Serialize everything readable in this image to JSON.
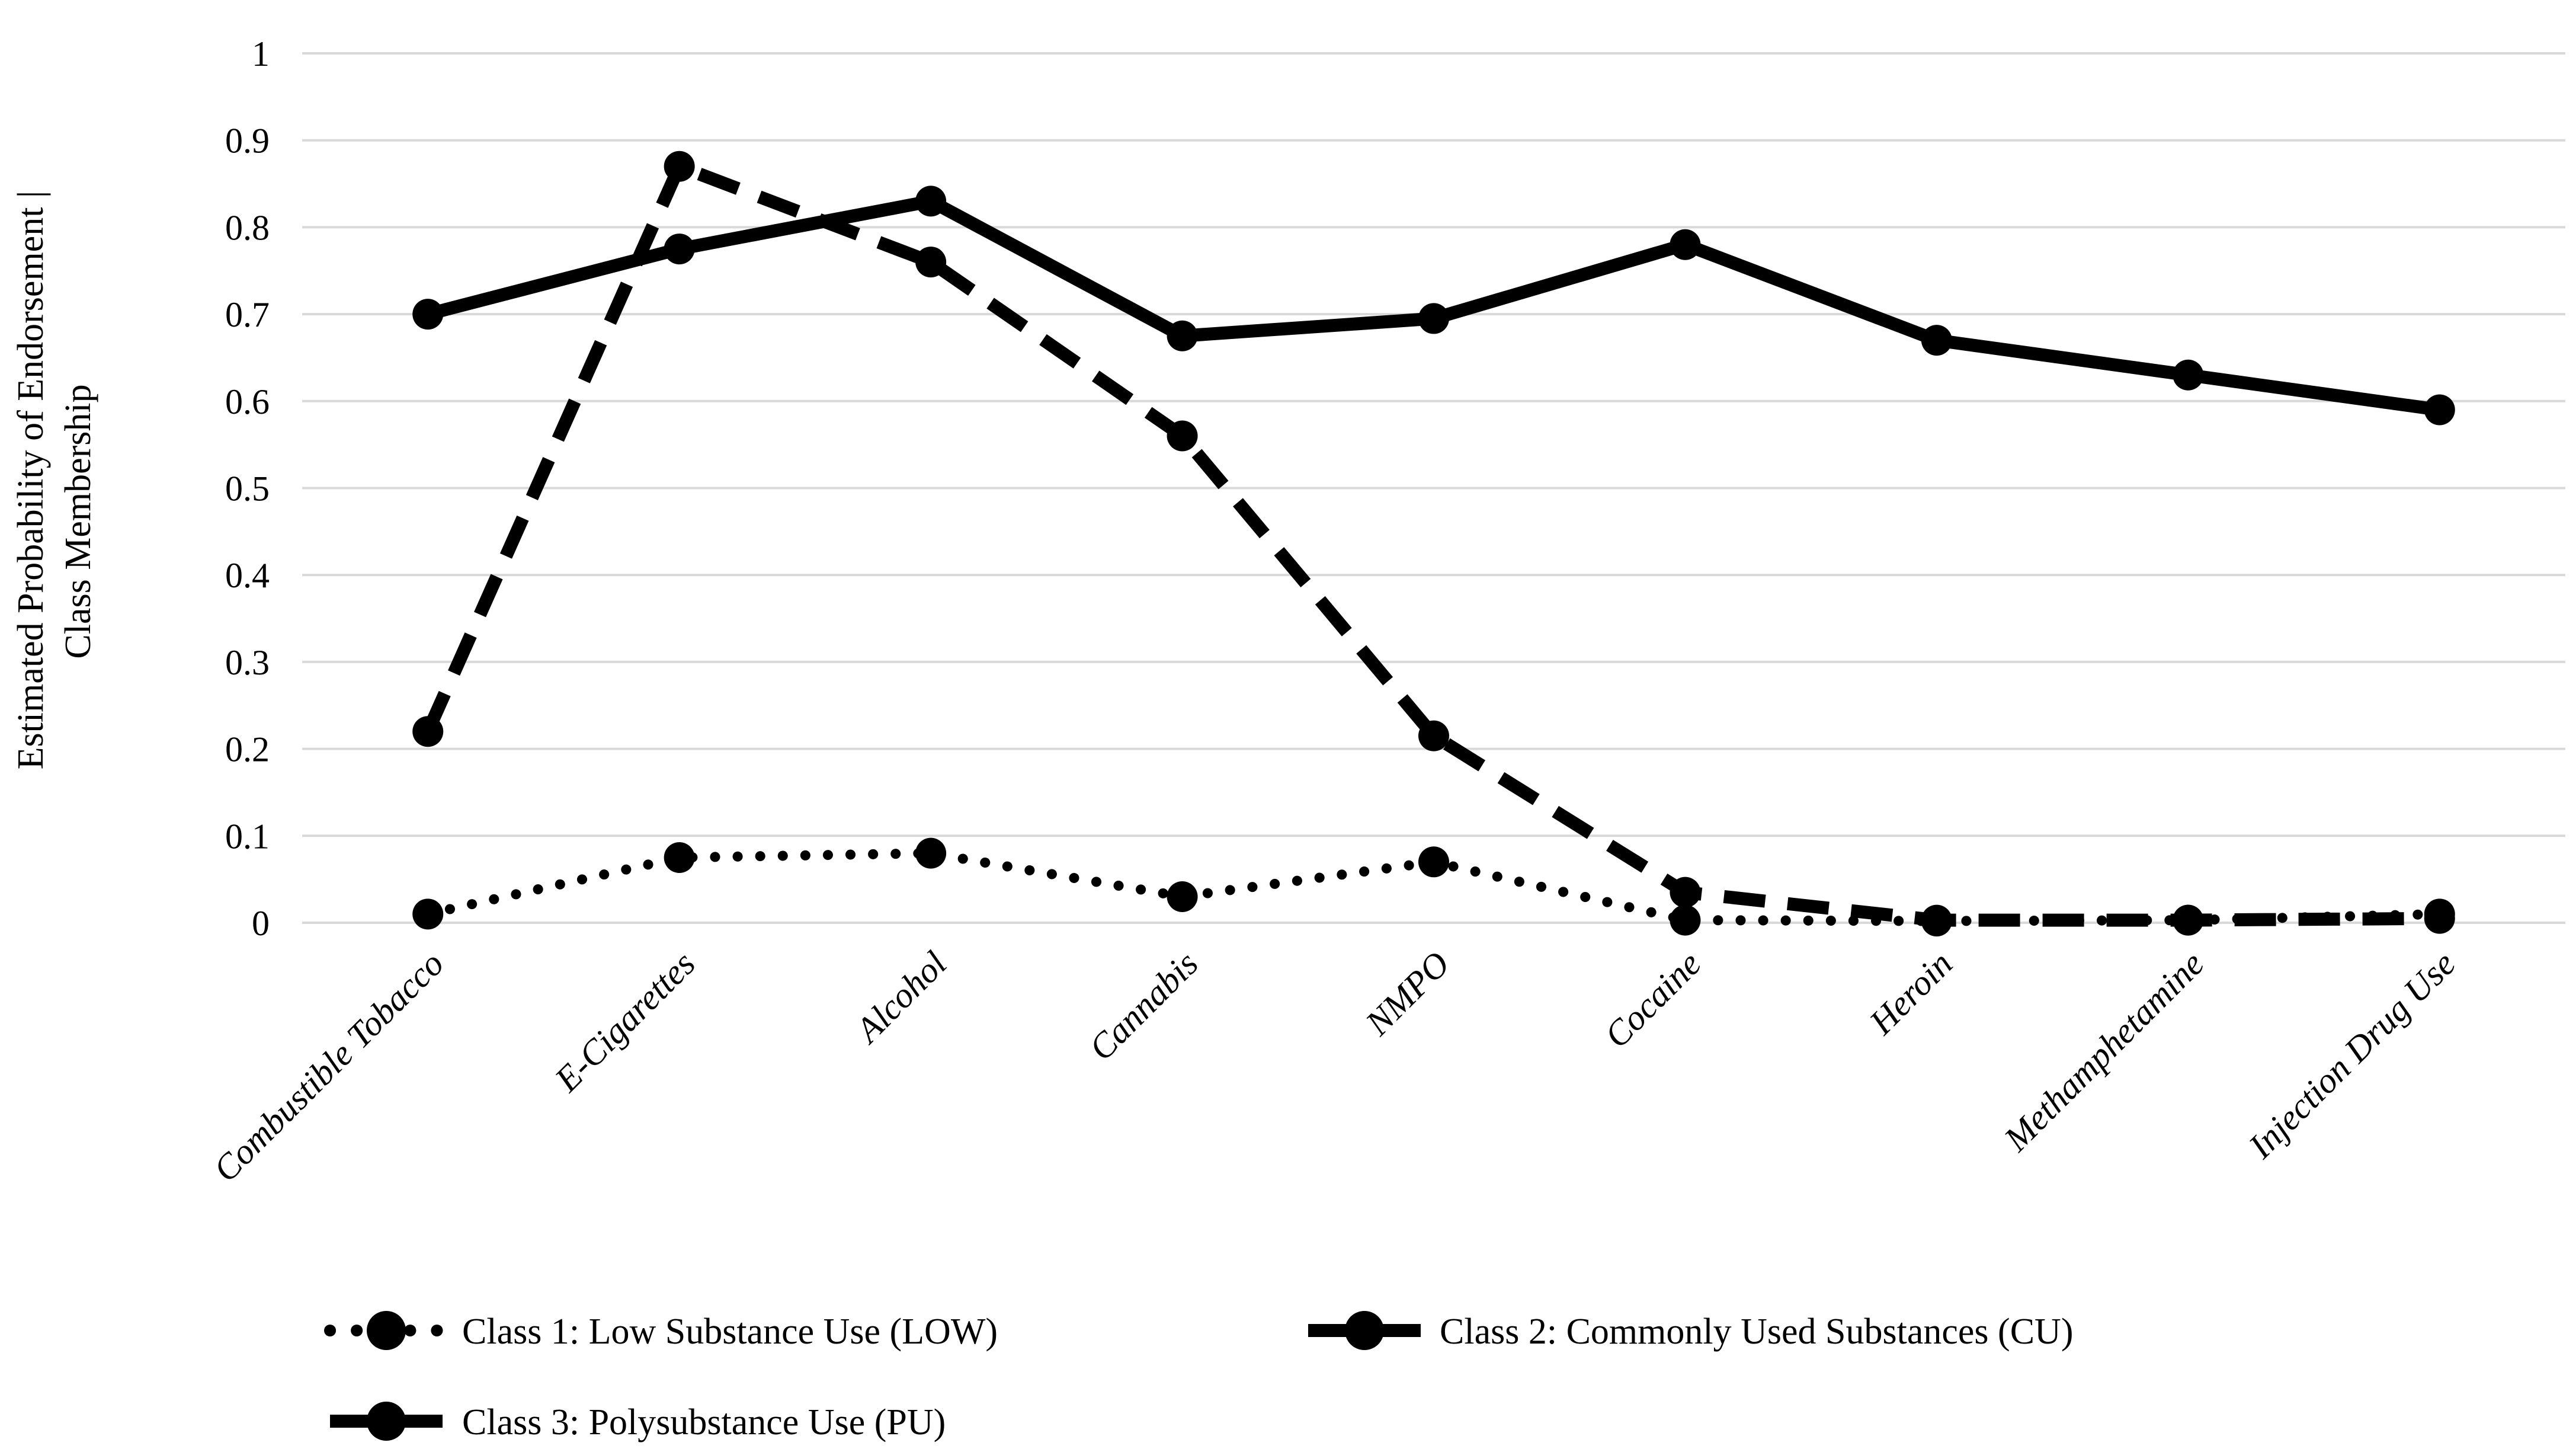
{
  "figure": {
    "background_color": "#ffffff",
    "grid_color": "#d9d9d9",
    "line_color": "#000000"
  },
  "y_axis": {
    "title_line1": "Estimated Probability of Endorsement |",
    "title_line2": "Class Membership",
    "ticks": [
      "1",
      "0.9",
      "0.8",
      "0.7",
      "0.6",
      "0.5",
      "0.4",
      "0.3",
      "0.2",
      "0.1",
      "0"
    ]
  },
  "chart_data": {
    "type": "line",
    "title": "",
    "xlabel": "",
    "ylabel": "Estimated Probability of Endorsement | Class Membership",
    "ylim": [
      0,
      1
    ],
    "ytick_step": 0.1,
    "grid": true,
    "legend_position": "bottom-left-two-rows",
    "categories": [
      "Combustible Tobacco",
      "E-Cigarettes",
      "Alcohol",
      "Cannabis",
      "NMPO",
      "Cocaine",
      "Heroin",
      "Methamphetamine",
      "Injection Drug Use"
    ],
    "series": [
      {
        "name": "Class 1: Low Substance Use (LOW)",
        "style": "dotted",
        "values": [
          0.01,
          0.075,
          0.08,
          0.03,
          0.07,
          0.003,
          0.002,
          0.003,
          0.01
        ]
      },
      {
        "name": "Class 2: Commonly Used Substances (CU)",
        "style": "dashed",
        "values": [
          0.22,
          0.87,
          0.76,
          0.56,
          0.215,
          0.035,
          0.003,
          0.003,
          0.005
        ]
      },
      {
        "name": "Class 3: Polysubstance Use (PU)",
        "style": "solid",
        "values": [
          0.7,
          0.775,
          0.83,
          0.675,
          0.695,
          0.78,
          0.67,
          0.63,
          0.59
        ]
      }
    ]
  }
}
